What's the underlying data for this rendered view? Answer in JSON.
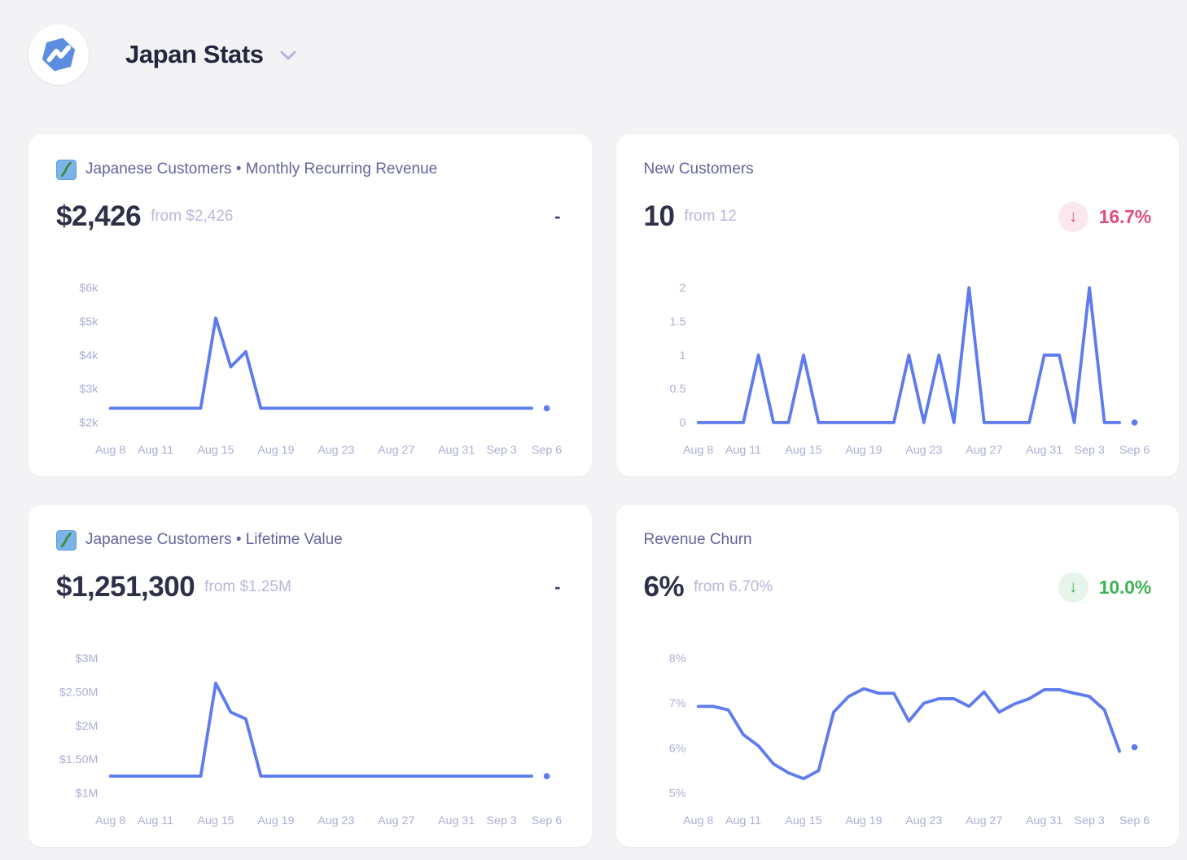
{
  "header": {
    "title": "Japan Stats",
    "logo": "baremetrics-logo",
    "dropdown_chevron": "chevron-down"
  },
  "colors": {
    "line": "#5e7bef",
    "card_title": "#63649e",
    "value_dark": "#2e3048",
    "muted": "#b7b9d9",
    "tick": "#abaed6",
    "dash": "#42435f",
    "negative": "#dd4f7e",
    "negative_bg": "#fbe7ee",
    "positive": "#3eb356",
    "positive_bg": "#e6f5e9"
  },
  "cards": [
    {
      "id": "mrr",
      "icon": "japan-silhouette-emoji",
      "title": "Japanese Customers • Monthly Recurring Revenue",
      "value": "$2,426",
      "from": "from $2,426",
      "change": {
        "type": "none",
        "label": "-"
      },
      "chart_data": {
        "type": "line",
        "title": "Japanese Customers Monthly Recurring Revenue over time",
        "x": [
          "Aug 8",
          "Aug 9",
          "Aug 10",
          "Aug 11",
          "Aug 12",
          "Aug 13",
          "Aug 14",
          "Aug 15",
          "Aug 16",
          "Aug 17",
          "Aug 18",
          "Aug 19",
          "Aug 20",
          "Aug 21",
          "Aug 22",
          "Aug 23",
          "Aug 24",
          "Aug 25",
          "Aug 26",
          "Aug 27",
          "Aug 28",
          "Aug 29",
          "Aug 30",
          "Aug 31",
          "Sep 1",
          "Sep 2",
          "Sep 3",
          "Sep 4",
          "Sep 5",
          "Sep 6"
        ],
        "values": [
          2426,
          2426,
          2426,
          2426,
          2426,
          2426,
          2426,
          5100,
          3650,
          4100,
          2426,
          2426,
          2426,
          2426,
          2426,
          2426,
          2426,
          2426,
          2426,
          2426,
          2426,
          2426,
          2426,
          2426,
          2426,
          2426,
          2426,
          2426,
          2426,
          2426
        ],
        "ylim": [
          2000,
          6000
        ],
        "y_ticks": [
          {
            "label": "$6k",
            "value": 6000
          },
          {
            "label": "$5k",
            "value": 5000
          },
          {
            "label": "$4k",
            "value": 4000
          },
          {
            "label": "$3k",
            "value": 3000
          },
          {
            "label": "$2k",
            "value": 2000
          }
        ],
        "x_ticks": [
          {
            "label": "Aug 8",
            "day": 0
          },
          {
            "label": "Aug 11",
            "day": 3
          },
          {
            "label": "Aug 15",
            "day": 7
          },
          {
            "label": "Aug 19",
            "day": 11
          },
          {
            "label": "Aug 23",
            "day": 15
          },
          {
            "label": "Aug 27",
            "day": 19
          },
          {
            "label": "Aug 31",
            "day": 23
          },
          {
            "label": "Sep 3",
            "day": 26
          },
          {
            "label": "Sep 6",
            "day": 29
          }
        ],
        "grid": false,
        "legend": false,
        "last_point_detached": true
      }
    },
    {
      "id": "new-customers",
      "title": "New Customers",
      "value": "10",
      "from": "from 12",
      "change": {
        "type": "negative",
        "direction": "down",
        "arrow": "↓",
        "label": "16.7%"
      },
      "chart_data": {
        "type": "line",
        "title": "New Customers over time",
        "x": [
          "Aug 8",
          "Aug 9",
          "Aug 10",
          "Aug 11",
          "Aug 12",
          "Aug 13",
          "Aug 14",
          "Aug 15",
          "Aug 16",
          "Aug 17",
          "Aug 18",
          "Aug 19",
          "Aug 20",
          "Aug 21",
          "Aug 22",
          "Aug 23",
          "Aug 24",
          "Aug 25",
          "Aug 26",
          "Aug 27",
          "Aug 28",
          "Aug 29",
          "Aug 30",
          "Aug 31",
          "Sep 1",
          "Sep 2",
          "Sep 3",
          "Sep 4",
          "Sep 5",
          "Sep 6"
        ],
        "values": [
          0,
          0,
          0,
          0,
          1,
          0,
          0,
          1,
          0,
          0,
          0,
          0,
          0,
          0,
          1,
          0,
          1,
          0,
          2,
          0,
          0,
          0,
          0,
          1,
          1,
          0,
          2,
          0,
          0,
          0
        ],
        "ylim": [
          0,
          2
        ],
        "y_ticks": [
          {
            "label": "2",
            "value": 2
          },
          {
            "label": "1.5",
            "value": 1.5
          },
          {
            "label": "1",
            "value": 1
          },
          {
            "label": "0.5",
            "value": 0.5
          },
          {
            "label": "0",
            "value": 0
          }
        ],
        "x_ticks": [
          {
            "label": "Aug 8",
            "day": 0
          },
          {
            "label": "Aug 11",
            "day": 3
          },
          {
            "label": "Aug 15",
            "day": 7
          },
          {
            "label": "Aug 19",
            "day": 11
          },
          {
            "label": "Aug 23",
            "day": 15
          },
          {
            "label": "Aug 27",
            "day": 19
          },
          {
            "label": "Aug 31",
            "day": 23
          },
          {
            "label": "Sep 3",
            "day": 26
          },
          {
            "label": "Sep 6",
            "day": 29
          }
        ],
        "grid": false,
        "legend": false,
        "last_point_detached": true
      }
    },
    {
      "id": "ltv",
      "icon": "japan-silhouette-emoji",
      "title": "Japanese Customers • Lifetime Value",
      "value": "$1,251,300",
      "from": "from $1.25M",
      "change": {
        "type": "none",
        "label": "-"
      },
      "chart_data": {
        "type": "line",
        "title": "Japanese Customers Lifetime Value over time",
        "x": [
          "Aug 8",
          "Aug 9",
          "Aug 10",
          "Aug 11",
          "Aug 12",
          "Aug 13",
          "Aug 14",
          "Aug 15",
          "Aug 16",
          "Aug 17",
          "Aug 18",
          "Aug 19",
          "Aug 20",
          "Aug 21",
          "Aug 22",
          "Aug 23",
          "Aug 24",
          "Aug 25",
          "Aug 26",
          "Aug 27",
          "Aug 28",
          "Aug 29",
          "Aug 30",
          "Aug 31",
          "Sep 1",
          "Sep 2",
          "Sep 3",
          "Sep 4",
          "Sep 5",
          "Sep 6"
        ],
        "values": [
          1251300,
          1251300,
          1251300,
          1251300,
          1251300,
          1251300,
          1251300,
          2630000,
          2200000,
          2100000,
          1251300,
          1251300,
          1251300,
          1251300,
          1251300,
          1251300,
          1251300,
          1251300,
          1251300,
          1251300,
          1251300,
          1251300,
          1251300,
          1251300,
          1251300,
          1251300,
          1251300,
          1251300,
          1251300,
          1251300
        ],
        "ylim": [
          1000000,
          3000000
        ],
        "y_ticks": [
          {
            "label": "$3M",
            "value": 3000000
          },
          {
            "label": "$2.50M",
            "value": 2500000
          },
          {
            "label": "$2M",
            "value": 2000000
          },
          {
            "label": "$1.50M",
            "value": 1500000
          },
          {
            "label": "$1M",
            "value": 1000000
          }
        ],
        "x_ticks": [
          {
            "label": "Aug 8",
            "day": 0
          },
          {
            "label": "Aug 11",
            "day": 3
          },
          {
            "label": "Aug 15",
            "day": 7
          },
          {
            "label": "Aug 19",
            "day": 11
          },
          {
            "label": "Aug 23",
            "day": 15
          },
          {
            "label": "Aug 27",
            "day": 19
          },
          {
            "label": "Aug 31",
            "day": 23
          },
          {
            "label": "Sep 3",
            "day": 26
          },
          {
            "label": "Sep 6",
            "day": 29
          }
        ],
        "grid": false,
        "legend": false,
        "last_point_detached": true
      }
    },
    {
      "id": "revenue-churn",
      "title": "Revenue Churn",
      "value": "6%",
      "from": "from 6.70%",
      "change": {
        "type": "positive",
        "direction": "down",
        "arrow": "↓",
        "label": "10.0%"
      },
      "chart_data": {
        "type": "line",
        "title": "Revenue Churn over time",
        "x": [
          "Aug 8",
          "Aug 9",
          "Aug 10",
          "Aug 11",
          "Aug 12",
          "Aug 13",
          "Aug 14",
          "Aug 15",
          "Aug 16",
          "Aug 17",
          "Aug 18",
          "Aug 19",
          "Aug 20",
          "Aug 21",
          "Aug 22",
          "Aug 23",
          "Aug 24",
          "Aug 25",
          "Aug 26",
          "Aug 27",
          "Aug 28",
          "Aug 29",
          "Aug 30",
          "Aug 31",
          "Sep 1",
          "Sep 2",
          "Sep 3",
          "Sep 4",
          "Sep 5",
          "Sep 6"
        ],
        "values": [
          6.93,
          6.93,
          6.85,
          6.3,
          6.05,
          5.65,
          5.45,
          5.32,
          5.5,
          6.8,
          7.15,
          7.32,
          7.22,
          7.22,
          6.6,
          7.0,
          7.1,
          7.1,
          6.93,
          7.25,
          6.8,
          6.98,
          7.1,
          7.3,
          7.3,
          7.22,
          7.15,
          6.85,
          5.93,
          6.02
        ],
        "ylim": [
          5,
          8
        ],
        "y_ticks": [
          {
            "label": "8%",
            "value": 8
          },
          {
            "label": "7%",
            "value": 7
          },
          {
            "label": "6%",
            "value": 6
          },
          {
            "label": "5%",
            "value": 5
          }
        ],
        "x_ticks": [
          {
            "label": "Aug 8",
            "day": 0
          },
          {
            "label": "Aug 11",
            "day": 3
          },
          {
            "label": "Aug 15",
            "day": 7
          },
          {
            "label": "Aug 19",
            "day": 11
          },
          {
            "label": "Aug 23",
            "day": 15
          },
          {
            "label": "Aug 27",
            "day": 19
          },
          {
            "label": "Aug 31",
            "day": 23
          },
          {
            "label": "Sep 3",
            "day": 26
          },
          {
            "label": "Sep 6",
            "day": 29
          }
        ],
        "grid": false,
        "legend": false,
        "last_point_detached": true
      }
    }
  ]
}
